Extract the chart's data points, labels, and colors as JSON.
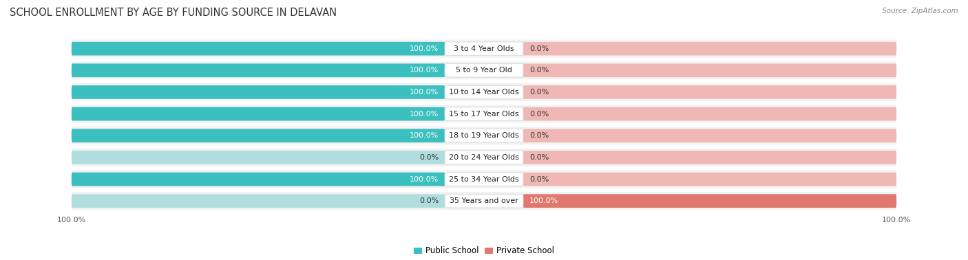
{
  "title": "SCHOOL ENROLLMENT BY AGE BY FUNDING SOURCE IN DELAVAN",
  "source": "Source: ZipAtlas.com",
  "categories": [
    "3 to 4 Year Olds",
    "5 to 9 Year Old",
    "10 to 14 Year Olds",
    "15 to 17 Year Olds",
    "18 to 19 Year Olds",
    "20 to 24 Year Olds",
    "25 to 34 Year Olds",
    "35 Years and over"
  ],
  "public_values": [
    100.0,
    100.0,
    100.0,
    100.0,
    100.0,
    0.0,
    100.0,
    0.0
  ],
  "private_values": [
    0.0,
    0.0,
    0.0,
    0.0,
    0.0,
    0.0,
    0.0,
    100.0
  ],
  "public_color": "#3bbfbf",
  "private_color": "#e07870",
  "public_color_light": "#b0dede",
  "private_color_light": "#f0b8b4",
  "row_bg_color": "#f2f2f2",
  "label_bg_color": "#ffffff",
  "title_fontsize": 10.5,
  "label_fontsize": 8.0,
  "tick_fontsize": 8.0,
  "legend_fontsize": 8.5,
  "figsize": [
    14.06,
    3.78
  ],
  "dpi": 100
}
